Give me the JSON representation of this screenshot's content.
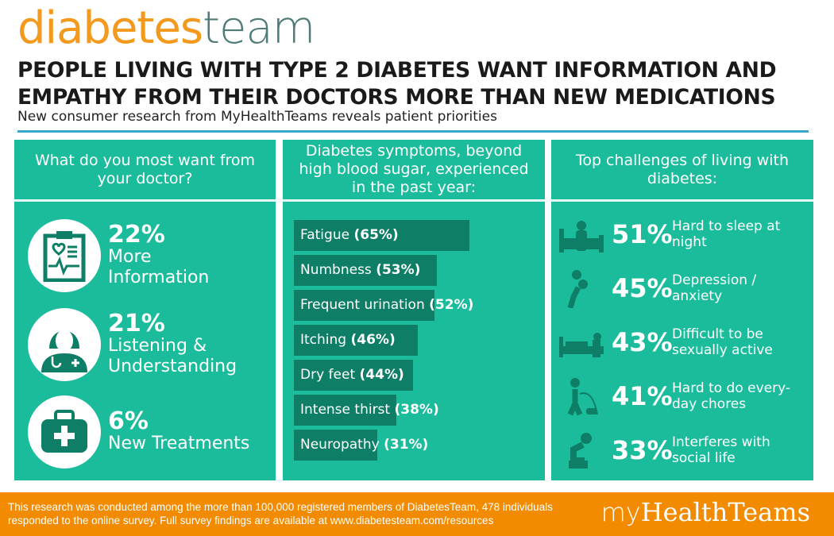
{
  "header": {
    "logo_part1": "diabetes",
    "logo_part2": "team",
    "title_line1": "PEOPLE LIVING WITH TYPE 2 DIABETES WANT INFORMATION AND",
    "title_line2": "EMPATHY FROM THEIR DOCTORS MORE THAN NEW MEDICATIONS",
    "subtitle": "New consumer research from MyHealthTeams reveals patient priorities"
  },
  "colors": {
    "teal": "#1bbc9b",
    "dark_teal": "#0e7f66",
    "orange": "#f28b00",
    "logo_orange": "#f39a1e",
    "rule_blue": "#3aa8c8"
  },
  "wants": {
    "heading": "What do you most want from your doctor?",
    "items": [
      {
        "pct": "22%",
        "label_line1": "More",
        "label_line2": "Information",
        "icon": "clipboard-heart-icon"
      },
      {
        "pct": "21%",
        "label_line1": "Listening &",
        "label_line2": "Understanding",
        "icon": "doctor-icon"
      },
      {
        "pct": "6%",
        "label_line1": "New Treatments",
        "label_line2": "",
        "icon": "medical-kit-icon"
      }
    ]
  },
  "chart_data": {
    "type": "bar",
    "orientation": "horizontal",
    "title": "Diabetes symptoms, beyond high blood sugar, experienced in the past year:",
    "categories": [
      "Fatigue",
      "Numbness",
      "Frequent urination",
      "Itching",
      "Dry feet",
      "Intense thirst",
      "Neuropathy"
    ],
    "values": [
      65,
      53,
      52,
      46,
      44,
      38,
      31
    ],
    "value_labels": [
      "(65%)",
      "(53%)",
      "(52%)",
      "(46%)",
      "(44%)",
      "(38%)",
      "(31%)"
    ],
    "unit": "%",
    "xlim": [
      0,
      100
    ]
  },
  "challenges": {
    "heading": "Top challenges of living with diabetes:",
    "items": [
      {
        "pct": "51%",
        "label": "Hard to sleep at night",
        "icon": "sleepless-icon"
      },
      {
        "pct": "45%",
        "label": "Depression / anxiety",
        "icon": "depressed-person-icon"
      },
      {
        "pct": "43%",
        "label": "Difficult to be sexually active",
        "icon": "bed-couple-icon"
      },
      {
        "pct": "41%",
        "label": "Hard to do every-day chores",
        "icon": "vacuum-person-icon"
      },
      {
        "pct": "33%",
        "label": "Interferes with social life",
        "icon": "sitting-person-icon"
      }
    ]
  },
  "footer": {
    "text": "This research was conducted among the more than 100,000 registered members of DiabetesTeam, 478 individuals responded to the online survey. Full survey findings are available at www.diabetesteam.com/resources",
    "logo_part1": "my",
    "logo_part2": "HealthTeams"
  }
}
